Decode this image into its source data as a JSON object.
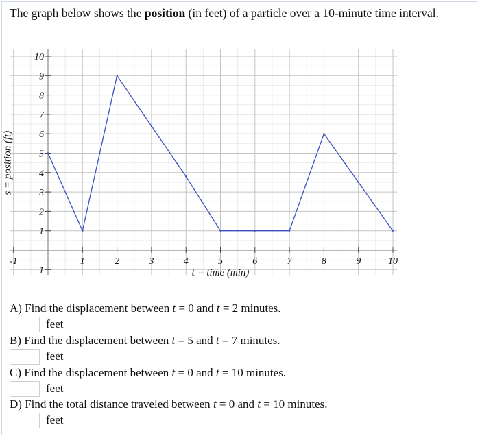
{
  "intro": {
    "before": "The graph below shows the ",
    "bold": "position",
    "after": " (in feet) of a particle over a 10-minute time interval."
  },
  "chart_data": {
    "type": "line",
    "x": [
      0,
      1,
      2,
      3,
      4,
      5,
      6,
      7,
      8,
      9,
      10
    ],
    "series": [
      {
        "values": [
          5,
          1,
          9,
          6.4,
          3.8,
          1,
          1,
          1,
          6,
          3.5,
          1
        ],
        "color": "#3a4fbf"
      }
    ],
    "xlabel_t": "t",
    "xlabel_rest": " = time (min)",
    "ylabel_s": "s",
    "ylabel_rest": " = position (ft)",
    "xlim": [
      -1,
      10
    ],
    "ylim": [
      -1,
      10
    ],
    "xticks": [
      "-1",
      "1",
      "2",
      "3",
      "4",
      "5",
      "6",
      "7",
      "8",
      "9",
      "10"
    ],
    "xtick_values": [
      -1,
      1,
      2,
      3,
      4,
      5,
      6,
      7,
      8,
      9,
      10
    ],
    "yticks": [
      "-1",
      "1",
      "2",
      "3",
      "4",
      "5",
      "6",
      "7",
      "8",
      "9",
      "10"
    ],
    "ytick_values": [
      -1,
      1,
      2,
      3,
      4,
      5,
      6,
      7,
      8,
      9,
      10
    ],
    "grid": true,
    "minor_grid_step": 0.5
  },
  "questions": [
    {
      "text_a": "A) Find the displacement between ",
      "v1": "t",
      "eq1": " = 0 and ",
      "v2": "t",
      "eq2": " = 2 minutes.",
      "unit": "feet",
      "answer": ""
    },
    {
      "text_a": "B) Find the displacement between ",
      "v1": "t",
      "eq1": " = 5 and ",
      "v2": "t",
      "eq2": " = 7 minutes.",
      "unit": "feet",
      "answer": ""
    },
    {
      "text_a": "C) Find the displacement between ",
      "v1": "t",
      "eq1": " = 0 and ",
      "v2": "t",
      "eq2": " = 10 minutes.",
      "unit": "feet",
      "answer": ""
    },
    {
      "text_a": "D) Find the total distance traveled between ",
      "v1": "t",
      "eq1": " = 0 and ",
      "v2": "t",
      "eq2": " = 10 minutes.",
      "unit": "feet",
      "answer": ""
    }
  ]
}
